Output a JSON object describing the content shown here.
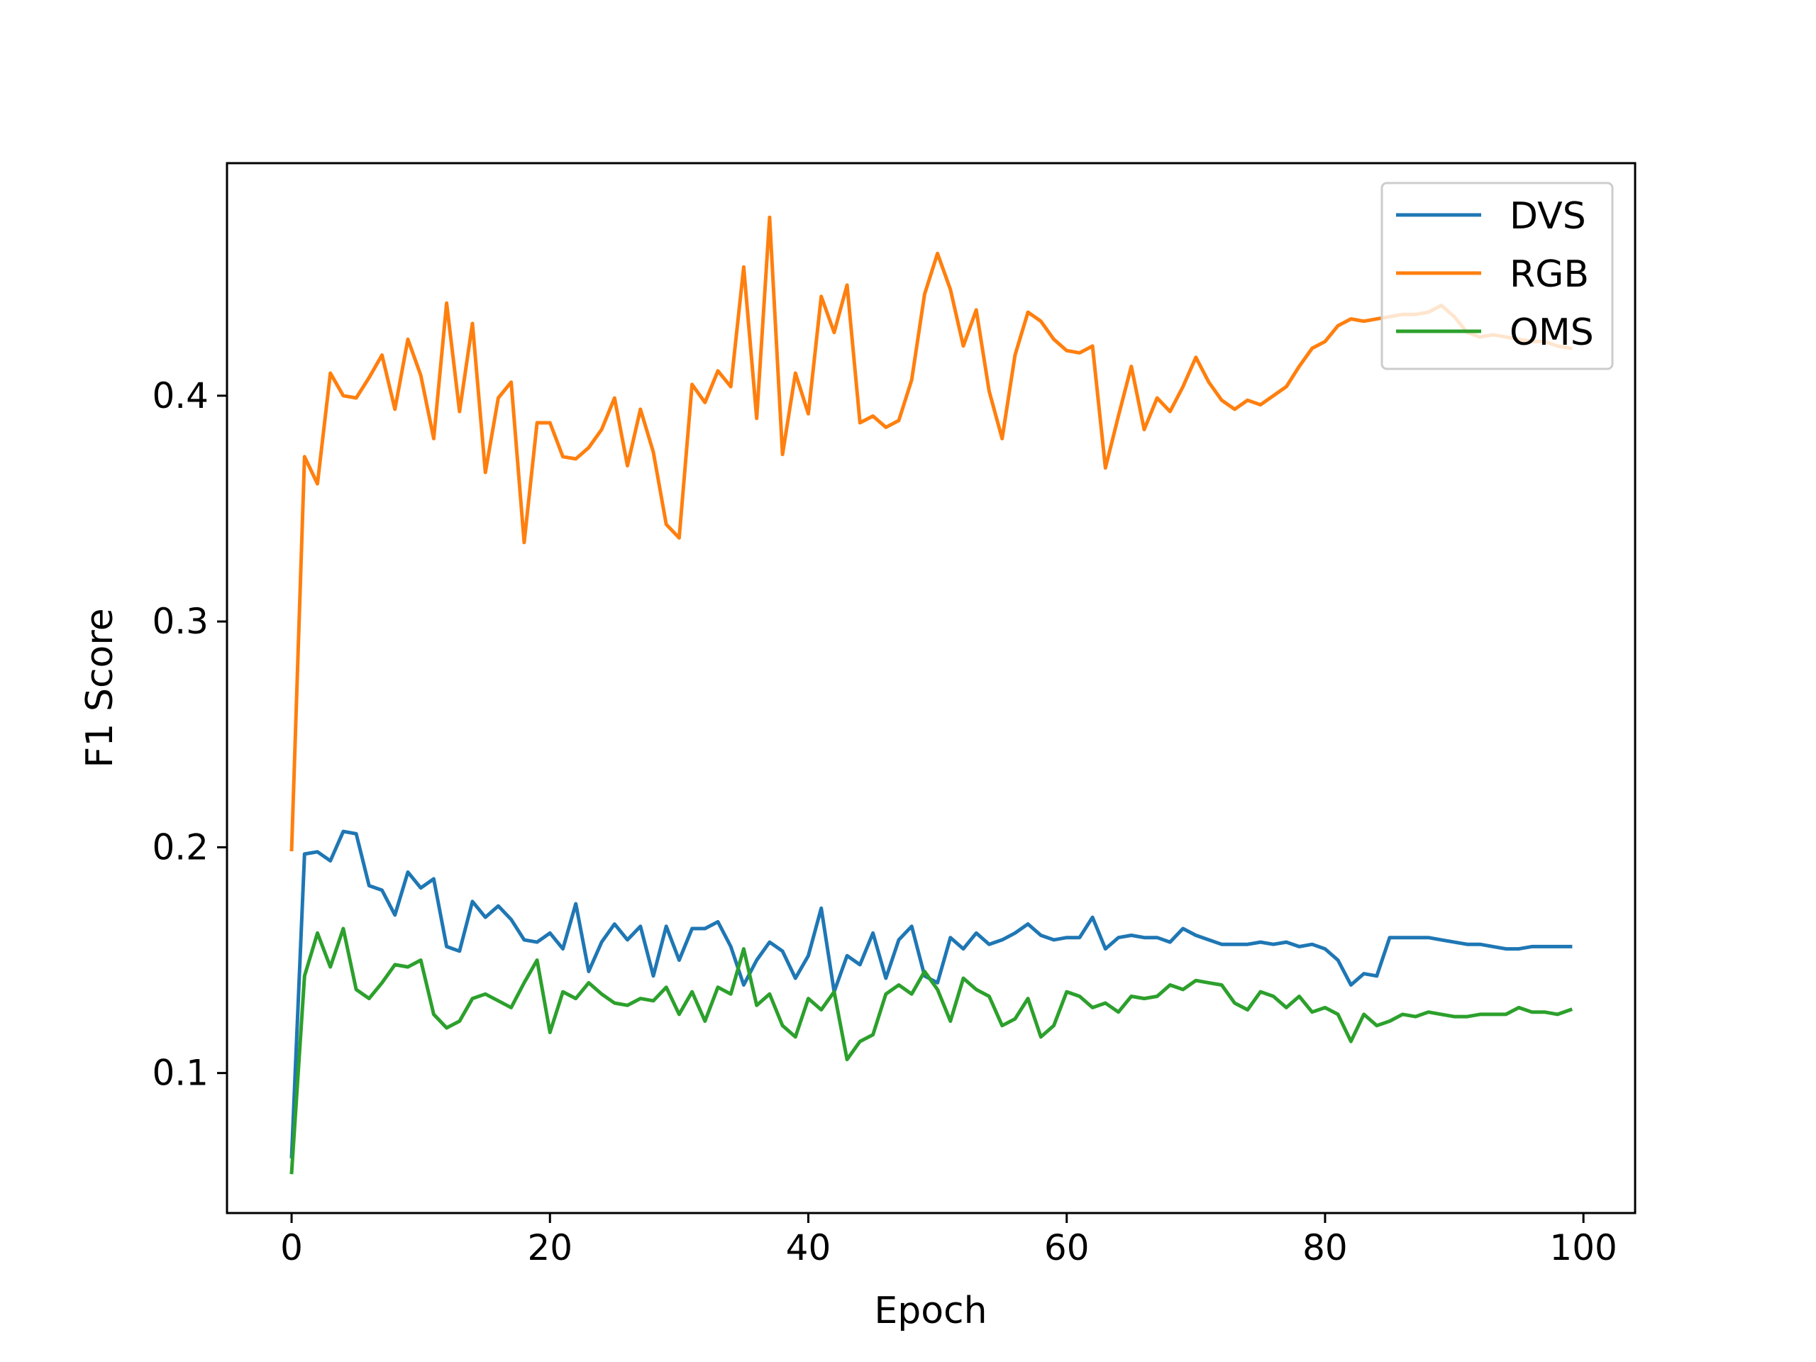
{
  "chart_data": {
    "type": "line",
    "xlabel": "Epoch",
    "ylabel": "F1 Score",
    "xlim": [
      -5,
      104
    ],
    "ylim": [
      0.038,
      0.503
    ],
    "xticks": [
      0,
      20,
      40,
      60,
      80,
      100
    ],
    "yticks": [
      0.1,
      0.2,
      0.3,
      0.4
    ],
    "xtick_labels": [
      "0",
      "20",
      "40",
      "60",
      "80",
      "100"
    ],
    "ytick_labels": [
      "0.1",
      "0.2",
      "0.3",
      "0.4"
    ],
    "grid": false,
    "legend_position": "top-right",
    "x": [
      0,
      1,
      2,
      3,
      4,
      5,
      6,
      7,
      8,
      9,
      10,
      11,
      12,
      13,
      14,
      15,
      16,
      17,
      18,
      19,
      20,
      21,
      22,
      23,
      24,
      25,
      26,
      27,
      28,
      29,
      30,
      31,
      32,
      33,
      34,
      35,
      36,
      37,
      38,
      39,
      40,
      41,
      42,
      43,
      44,
      45,
      46,
      47,
      48,
      49,
      50,
      51,
      52,
      53,
      54,
      55,
      56,
      57,
      58,
      59,
      60,
      61,
      62,
      63,
      64,
      65,
      66,
      67,
      68,
      69,
      70,
      71,
      72,
      73,
      74,
      75,
      76,
      77,
      78,
      79,
      80,
      81,
      82,
      83,
      84,
      85,
      86,
      87,
      88,
      89,
      90,
      91,
      92,
      93,
      94,
      95,
      96,
      97,
      98,
      99
    ],
    "series": [
      {
        "name": "DVS",
        "color": "#1f77b4",
        "values": [
          0.063,
          0.197,
          0.198,
          0.194,
          0.207,
          0.206,
          0.183,
          0.181,
          0.17,
          0.189,
          0.182,
          0.186,
          0.156,
          0.154,
          0.176,
          0.169,
          0.174,
          0.168,
          0.159,
          0.158,
          0.162,
          0.155,
          0.175,
          0.145,
          0.158,
          0.166,
          0.159,
          0.165,
          0.143,
          0.165,
          0.15,
          0.164,
          0.164,
          0.167,
          0.156,
          0.139,
          0.15,
          0.158,
          0.154,
          0.142,
          0.152,
          0.173,
          0.136,
          0.152,
          0.148,
          0.162,
          0.142,
          0.159,
          0.165,
          0.143,
          0.14,
          0.16,
          0.155,
          0.162,
          0.157,
          0.159,
          0.162,
          0.166,
          0.161,
          0.159,
          0.16,
          0.16,
          0.169,
          0.155,
          0.16,
          0.161,
          0.16,
          0.16,
          0.158,
          0.164,
          0.161,
          0.159,
          0.157,
          0.157,
          0.157,
          0.158,
          0.157,
          0.158,
          0.156,
          0.157,
          0.155,
          0.15,
          0.139,
          0.144,
          0.143,
          0.16,
          0.16,
          0.16,
          0.16,
          0.159,
          0.158,
          0.157,
          0.157,
          0.156,
          0.155,
          0.155,
          0.156,
          0.156,
          0.156,
          0.156
        ]
      },
      {
        "name": "RGB",
        "color": "#ff7f0e",
        "values": [
          0.199,
          0.373,
          0.361,
          0.41,
          0.4,
          0.399,
          0.408,
          0.418,
          0.394,
          0.425,
          0.409,
          0.381,
          0.441,
          0.393,
          0.432,
          0.366,
          0.399,
          0.406,
          0.335,
          0.388,
          0.388,
          0.373,
          0.372,
          0.377,
          0.385,
          0.399,
          0.369,
          0.394,
          0.375,
          0.343,
          0.337,
          0.405,
          0.397,
          0.411,
          0.404,
          0.457,
          0.39,
          0.479,
          0.374,
          0.41,
          0.392,
          0.444,
          0.428,
          0.449,
          0.388,
          0.391,
          0.386,
          0.389,
          0.407,
          0.445,
          0.463,
          0.447,
          0.422,
          0.438,
          0.402,
          0.381,
          0.418,
          0.437,
          0.433,
          0.425,
          0.42,
          0.419,
          0.422,
          0.368,
          0.391,
          0.413,
          0.385,
          0.399,
          0.393,
          0.404,
          0.417,
          0.406,
          0.398,
          0.394,
          0.398,
          0.396,
          0.4,
          0.404,
          0.413,
          0.421,
          0.424,
          0.431,
          0.434,
          0.433,
          0.434,
          0.435,
          0.436,
          0.436,
          0.437,
          0.44,
          0.435,
          0.428,
          0.426,
          0.427,
          0.426,
          0.425,
          0.424,
          0.424,
          0.422,
          0.421
        ]
      },
      {
        "name": "OMS",
        "color": "#2ca02c",
        "values": [
          0.056,
          0.143,
          0.162,
          0.147,
          0.164,
          0.137,
          0.133,
          0.14,
          0.148,
          0.147,
          0.15,
          0.126,
          0.12,
          0.123,
          0.133,
          0.135,
          0.132,
          0.129,
          0.14,
          0.15,
          0.118,
          0.136,
          0.133,
          0.14,
          0.135,
          0.131,
          0.13,
          0.133,
          0.132,
          0.138,
          0.126,
          0.136,
          0.123,
          0.138,
          0.135,
          0.155,
          0.13,
          0.135,
          0.121,
          0.116,
          0.133,
          0.128,
          0.136,
          0.106,
          0.114,
          0.117,
          0.135,
          0.139,
          0.135,
          0.145,
          0.137,
          0.123,
          0.142,
          0.137,
          0.134,
          0.121,
          0.124,
          0.133,
          0.116,
          0.121,
          0.136,
          0.134,
          0.129,
          0.131,
          0.127,
          0.134,
          0.133,
          0.134,
          0.139,
          0.137,
          0.141,
          0.14,
          0.139,
          0.131,
          0.128,
          0.136,
          0.134,
          0.129,
          0.134,
          0.127,
          0.129,
          0.126,
          0.114,
          0.126,
          0.121,
          0.123,
          0.126,
          0.125,
          0.127,
          0.126,
          0.125,
          0.125,
          0.126,
          0.126,
          0.126,
          0.129,
          0.127,
          0.127,
          0.126,
          0.128
        ]
      }
    ]
  }
}
